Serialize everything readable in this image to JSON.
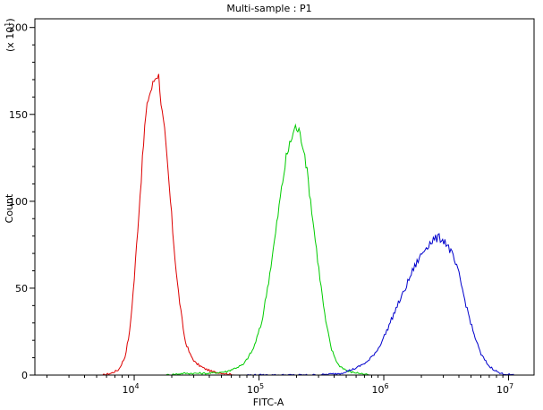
{
  "chart_data": {
    "type": "line",
    "title": "Multi-sample : P1",
    "xlabel": "FITC-A",
    "ylabel": "Count",
    "y_multiplier_label": "(x 10",
    "y_multiplier_exp": "1",
    "x_scale": "log",
    "xlim": [
      1600,
      16000000
    ],
    "ylim": [
      0,
      205
    ],
    "x_ticks": [
      {
        "value": 10000,
        "base": "10",
        "exp": "4"
      },
      {
        "value": 100000,
        "base": "10",
        "exp": "5"
      },
      {
        "value": 1000000,
        "base": "10",
        "exp": "6"
      },
      {
        "value": 10000000,
        "base": "10",
        "exp": "7"
      }
    ],
    "y_ticks": [
      0,
      50,
      100,
      150,
      200
    ],
    "grid": false,
    "series": [
      {
        "color": "#dd0000",
        "points": [
          [
            5600,
            0
          ],
          [
            6500,
            1
          ],
          [
            7500,
            3
          ],
          [
            8400,
            10
          ],
          [
            9200,
            25
          ],
          [
            10000,
            55
          ],
          [
            10800,
            90
          ],
          [
            11500,
            118
          ],
          [
            12200,
            145
          ],
          [
            13000,
            160
          ],
          [
            13800,
            165
          ],
          [
            14500,
            170
          ],
          [
            15200,
            173
          ],
          [
            15800,
            172
          ],
          [
            16500,
            155
          ],
          [
            17500,
            140
          ],
          [
            18500,
            120
          ],
          [
            19500,
            100
          ],
          [
            20500,
            80
          ],
          [
            22000,
            55
          ],
          [
            23500,
            38
          ],
          [
            25500,
            20
          ],
          [
            28000,
            12
          ],
          [
            31000,
            7
          ],
          [
            36000,
            4
          ],
          [
            42000,
            2
          ],
          [
            52000,
            1
          ],
          [
            65000,
            0
          ]
        ]
      },
      {
        "color": "#00cc00",
        "points": [
          [
            18000,
            0
          ],
          [
            25000,
            1
          ],
          [
            32000,
            1
          ],
          [
            40000,
            1
          ],
          [
            55000,
            2
          ],
          [
            75000,
            6
          ],
          [
            90000,
            15
          ],
          [
            105000,
            30
          ],
          [
            120000,
            55
          ],
          [
            135000,
            80
          ],
          [
            150000,
            105
          ],
          [
            165000,
            125
          ],
          [
            180000,
            135
          ],
          [
            195000,
            143
          ],
          [
            210000,
            140
          ],
          [
            230000,
            130
          ],
          [
            250000,
            110
          ],
          [
            275000,
            85
          ],
          [
            305000,
            58
          ],
          [
            340000,
            32
          ],
          [
            380000,
            15
          ],
          [
            430000,
            6
          ],
          [
            520000,
            2
          ],
          [
            650000,
            1
          ],
          [
            760000,
            0
          ]
        ]
      },
      {
        "color": "#0000cc",
        "points": [
          [
            80000,
            0
          ],
          [
            160000,
            0
          ],
          [
            300000,
            0
          ],
          [
            450000,
            1
          ],
          [
            600000,
            4
          ],
          [
            750000,
            8
          ],
          [
            900000,
            15
          ],
          [
            1050000,
            25
          ],
          [
            1250000,
            38
          ],
          [
            1450000,
            48
          ],
          [
            1700000,
            60
          ],
          [
            1950000,
            68
          ],
          [
            2200000,
            74
          ],
          [
            2500000,
            78
          ],
          [
            2800000,
            79
          ],
          [
            3100000,
            77
          ],
          [
            3500000,
            70
          ],
          [
            4000000,
            58
          ],
          [
            4500000,
            42
          ],
          [
            5200000,
            25
          ],
          [
            6000000,
            12
          ],
          [
            7000000,
            5
          ],
          [
            8500000,
            1
          ],
          [
            11000000,
            0
          ]
        ]
      }
    ]
  }
}
